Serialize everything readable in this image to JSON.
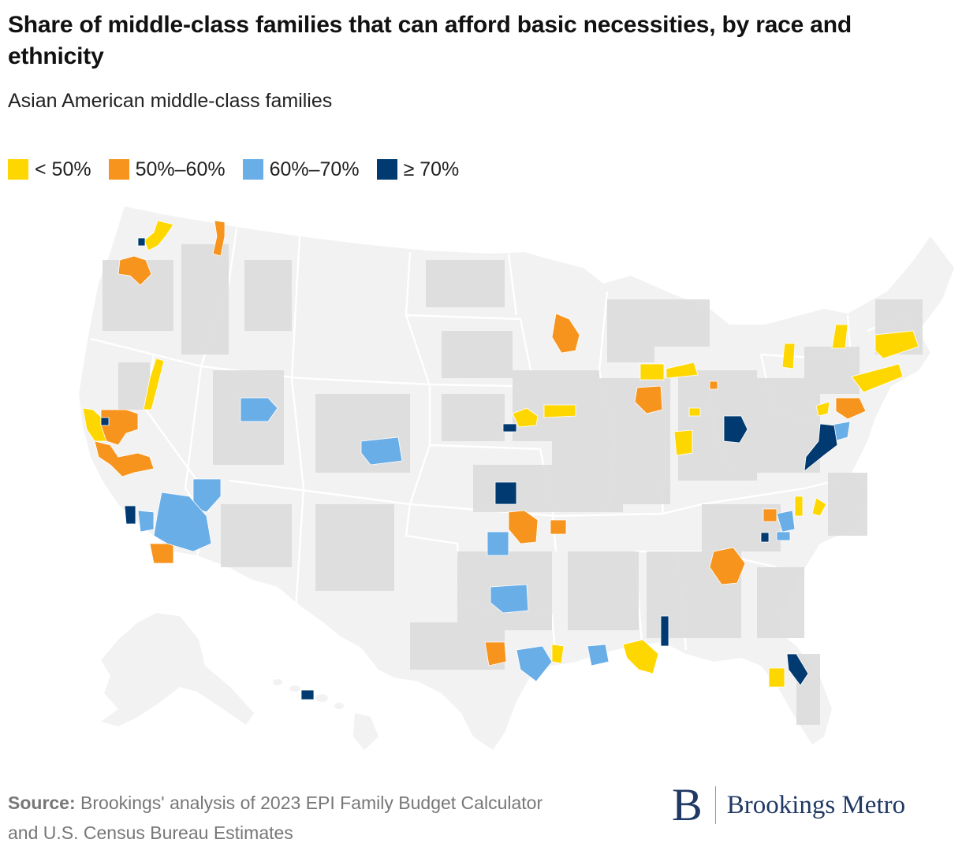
{
  "header": {
    "title": "Share of middle-class families that can afford basic necessities, by race and ethnicity",
    "subtitle": "Asian American middle-class families"
  },
  "legend": [
    {
      "label": "< 50%",
      "color": "#ffd700"
    },
    {
      "label": "50%–60%",
      "color": "#f7941d"
    },
    {
      "label": "60%–70%",
      "color": "#6aaee8"
    },
    {
      "label": "≥ 70%",
      "color": "#003a70"
    }
  ],
  "map": {
    "base_color": "#f2f2f2",
    "county_color": "#dcdcdc",
    "border_color": "#ffffff"
  },
  "footer": {
    "source_label": "Source:",
    "source_text": " Brookings' analysis of 2023 EPI Family Budget Calculator and U.S. Census Bureau Estimates",
    "brand_letter": "B",
    "brand_name": "Brookings Metro"
  }
}
